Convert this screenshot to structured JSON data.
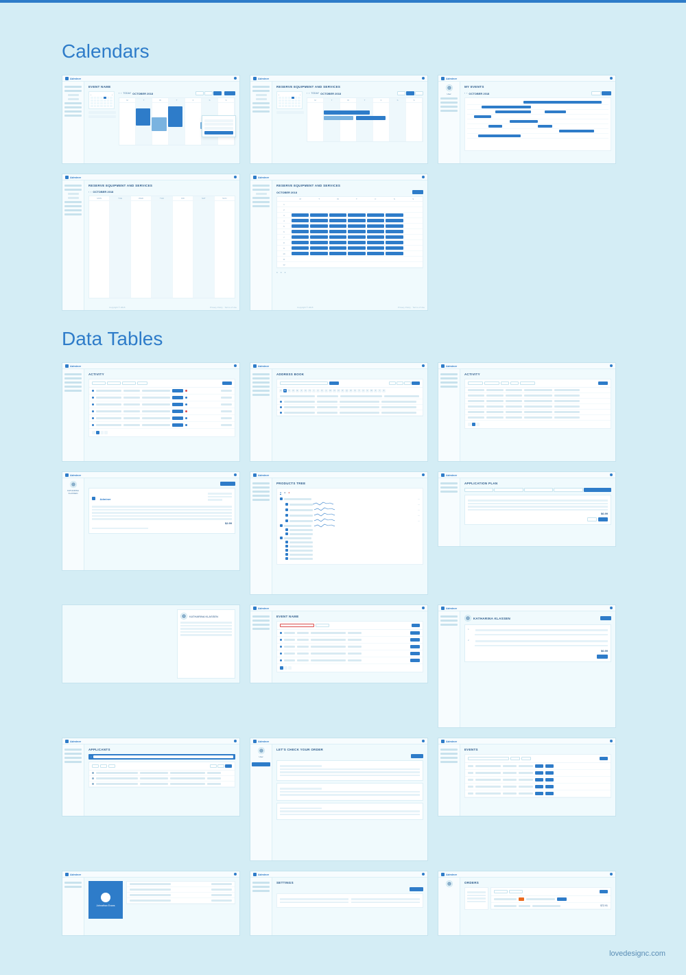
{
  "watermark": "lovedesignc.com",
  "sections": {
    "calendars": "Calendars",
    "data_tables": "Data Tables"
  },
  "brand": "Adminer",
  "common": {
    "month_label": "OCTOBER 2018",
    "today": "TODAY",
    "days": [
      "MON",
      "TUE",
      "WED",
      "THU",
      "FRI",
      "SAT",
      "SUN"
    ],
    "copyright": "Copyright © 2018",
    "footer_right": "Privacy Policy · Terms of Use"
  },
  "sidebar_items": [
    "Home",
    "Users",
    "Calendar",
    "Events",
    "Reports",
    "Settings",
    "Billing",
    "Help"
  ],
  "calendars": [
    {
      "title": "EVENT NAME",
      "view_buttons": [
        "DAY",
        "WEEK",
        "MONTH"
      ],
      "active_view": 2
    },
    {
      "title": "RESERVE EQUIPMENT AND SERVICES",
      "view_buttons": [
        "DAY",
        "WEEK",
        "MONTH"
      ],
      "active_view": 1
    },
    {
      "title": "MY EVENTS",
      "view_buttons": [
        "DAY",
        "WEEK",
        "MONTH"
      ],
      "active_view": 1,
      "profile": true
    },
    {
      "title": "RESERVE EQUIPMENT AND SERVICES",
      "view": "grid-week"
    },
    {
      "title": "RESERVE EQUIPMENT AND SERVICES",
      "view": "time-grid"
    }
  ],
  "data_tables": [
    {
      "title": "ACTIVITY",
      "type": "activity-table"
    },
    {
      "title": "ADDRESS BOOK",
      "type": "address-book"
    },
    {
      "title": "ACTIVITY",
      "type": "filter-table"
    },
    {
      "title": "KATHARINA KLASSEN",
      "type": "invoice",
      "total": "$2.99"
    },
    {
      "title": "PRODUCTS TREE",
      "type": "tree"
    },
    {
      "title": "APPLICATION PLAN",
      "type": "plan",
      "price": "$6.99"
    },
    {
      "title": "KATHARINA KLASSEN",
      "type": "profile-card"
    },
    {
      "title": "EVENT NAME",
      "type": "event-table"
    },
    {
      "title": "KATHARINA KLASSEN",
      "type": "order-detail",
      "total": "$6.99"
    },
    {
      "title": "APPLICANTS",
      "type": "applicants"
    },
    {
      "title": "LET'S CHECK YOUR ORDER",
      "type": "checkout",
      "profile": true
    },
    {
      "title": "EVENTS",
      "type": "events-list"
    },
    {
      "title": "Johnathan Evans",
      "type": "user-card"
    },
    {
      "title": "SETTINGS",
      "type": "settings"
    },
    {
      "title": "ORDERS",
      "type": "orders",
      "profile": true,
      "total": "$72.91"
    }
  ],
  "colors": {
    "primary": "#2e7cc9",
    "bg": "#d4edf5",
    "panel": "#f0fafd",
    "white": "#ffffff",
    "border": "#dceff6",
    "text": "#2b5a8a",
    "muted": "#8ab0cc",
    "red": "#d84a4a"
  },
  "alphabet": [
    "A",
    "B",
    "C",
    "D",
    "E",
    "F",
    "G",
    "H",
    "I",
    "J",
    "K",
    "L",
    "M",
    "N",
    "O",
    "P",
    "Q",
    "R",
    "S",
    "T",
    "U",
    "V",
    "W",
    "X",
    "Y",
    "Z"
  ]
}
